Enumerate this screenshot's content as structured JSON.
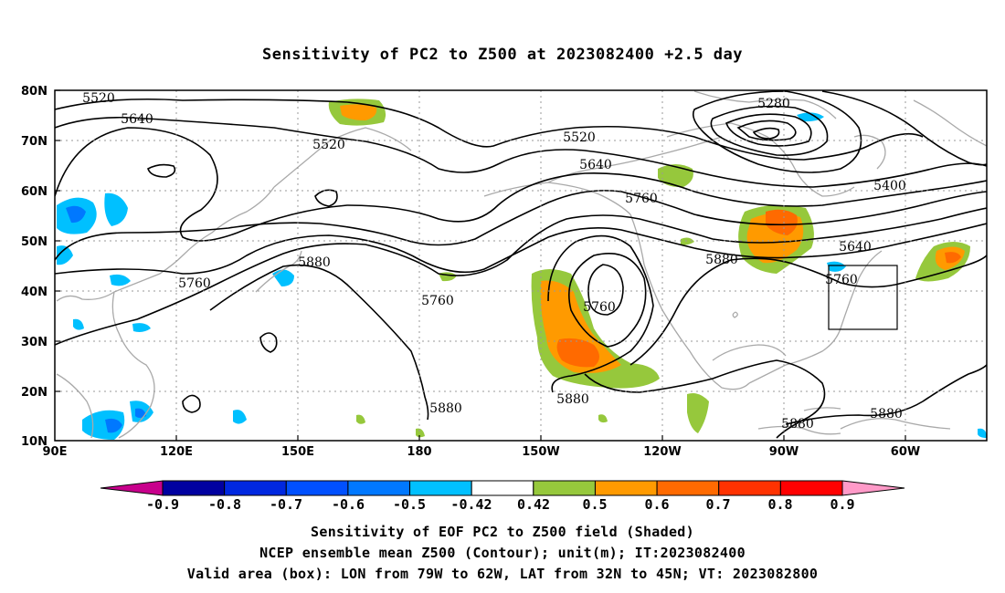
{
  "title": "Sensitivity of PC2 to Z500 at 2023082400 +2.5 day",
  "lat_labels": [
    "80N",
    "70N",
    "60N",
    "50N",
    "40N",
    "30N",
    "20N",
    "10N"
  ],
  "lon_labels": [
    "90E",
    "120E",
    "150E",
    "180",
    "150W",
    "120W",
    "90W",
    "60W"
  ],
  "contour_labels": [
    "5520",
    "5640",
    "5520",
    "5520",
    "5640",
    "5760",
    "5280",
    "5400",
    "5640",
    "5760",
    "5880",
    "5760",
    "5880",
    "5760",
    "5760",
    "5880",
    "5880",
    "5880",
    "5880"
  ],
  "colorbar": {
    "labels": [
      "-0.9",
      "-0.8",
      "-0.7",
      "-0.6",
      "-0.5",
      "-0.42",
      "0.42",
      "0.5",
      "0.6",
      "0.7",
      "0.8",
      "0.9"
    ],
    "colors": [
      "#0000a0",
      "#0028e0",
      "#0050ff",
      "#0078ff",
      "#00c0ff",
      "#ffffff",
      "#96c83c",
      "#ff9a00",
      "#ff6a00",
      "#ff3200",
      "#ff0000"
    ],
    "low_color": "#c8008c",
    "high_color": "#ff9ac8"
  },
  "shading_colors": {
    "pos1": "#96c83c",
    "pos2": "#ff9a00",
    "pos3": "#ff6a00",
    "neg1": "#00c0ff",
    "neg2": "#0078ff",
    "neg3": "#0050ff"
  },
  "caption": {
    "line1": "Sensitivity of EOF PC2 to Z500 field (Shaded)",
    "line2": "NCEP ensemble mean Z500 (Contour); unit(m); IT:2023082400",
    "line3": "Valid area (box): LON from 79W to 62W, LAT from 32N to 45N; VT: 2023082800"
  }
}
